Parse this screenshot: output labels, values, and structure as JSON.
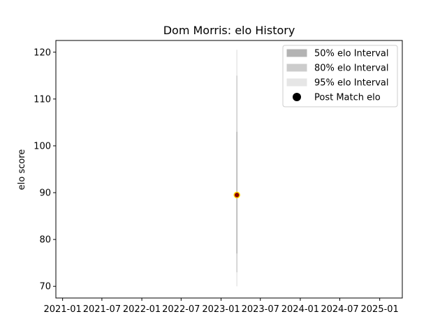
{
  "chart_data": {
    "type": "scatter",
    "title": "Dom Morris: elo History",
    "xlabel": "",
    "ylabel": "elo score",
    "xlim": [
      "2020-12-01",
      "2025-04-15"
    ],
    "ylim": [
      67.5,
      122.5
    ],
    "x_ticks": [
      "2021-01",
      "2021-07",
      "2022-01",
      "2022-07",
      "2023-01",
      "2023-07",
      "2024-01",
      "2024-07",
      "2025-01"
    ],
    "y_ticks": [
      70,
      80,
      90,
      100,
      110,
      120
    ],
    "grid": false,
    "legend_position": "top-right",
    "legend": [
      {
        "label": "50% elo Interval",
        "kind": "patch",
        "color": "#b3b3b3"
      },
      {
        "label": "80% elo Interval",
        "kind": "patch",
        "color": "#cccccc"
      },
      {
        "label": "95% elo Interval",
        "kind": "patch",
        "color": "#e6e6e6"
      },
      {
        "label": "Post Match elo",
        "kind": "marker",
        "color": "#000000"
      }
    ],
    "points": [
      {
        "date": "2023-03-15",
        "elo": 89.5,
        "interval_50": [
          77,
          103
        ],
        "interval_80": [
          73,
          115
        ],
        "interval_95": [
          70,
          120.5
        ]
      }
    ],
    "marker_color": "#8b0000",
    "marker_edge_color": "#ffd700"
  }
}
